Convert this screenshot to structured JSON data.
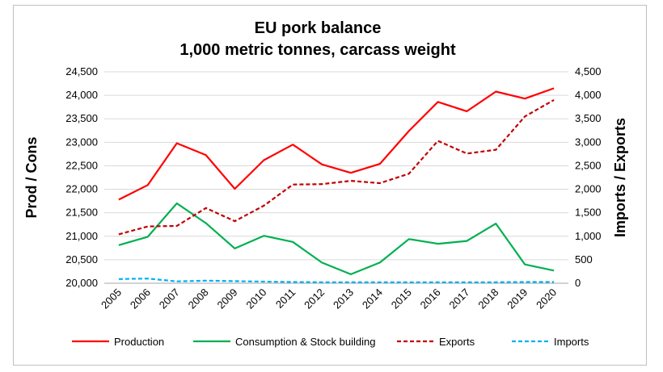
{
  "chart_data": {
    "type": "line",
    "title": "EU pork balance",
    "subtitle": "1,000 metric tonnes, carcass weight",
    "ylabel_left": "Prod / Cons",
    "ylabel_right": "Imports / Exports",
    "categories": [
      "2005",
      "2006",
      "2007",
      "2008",
      "2009",
      "2010",
      "2011",
      "2012",
      "2013",
      "2014",
      "2015",
      "2016",
      "2017",
      "2018",
      "2019",
      "2020"
    ],
    "left_axis": {
      "ylim": [
        20000,
        24500
      ],
      "ticks": [
        20000,
        20500,
        21000,
        21500,
        22000,
        22500,
        23000,
        23500,
        24000,
        24500
      ],
      "tick_labels": [
        "20,000",
        "20,500",
        "21,000",
        "21,500",
        "22,000",
        "22,500",
        "23,000",
        "23,500",
        "24,000",
        "24,500"
      ]
    },
    "right_axis": {
      "ylim": [
        0,
        4500
      ],
      "ticks": [
        0,
        500,
        1000,
        1500,
        2000,
        2500,
        3000,
        3500,
        4000,
        4500
      ],
      "tick_labels": [
        "0",
        "500",
        "1,000",
        "1,500",
        "2,000",
        "2,500",
        "3,000",
        "3,500",
        "4,000",
        "4,500"
      ]
    },
    "series": [
      {
        "name": "Production",
        "axis": "left",
        "color": "#ff0000",
        "dash": "solid",
        "values": [
          21780,
          22090,
          22980,
          22730,
          22010,
          22620,
          22950,
          22530,
          22350,
          22540,
          23240,
          23860,
          23660,
          24080,
          23930,
          24150
        ]
      },
      {
        "name": "Consumption & Stock building",
        "axis": "left",
        "color": "#00b050",
        "dash": "solid",
        "values": [
          20810,
          20990,
          21700,
          21280,
          20740,
          21010,
          20880,
          20440,
          20190,
          20440,
          20940,
          20840,
          20900,
          21270,
          20400,
          20270
        ]
      },
      {
        "name": "Exports",
        "axis": "right",
        "color": "#c00000",
        "dash": "dash",
        "values": [
          1040,
          1210,
          1220,
          1600,
          1320,
          1650,
          2100,
          2110,
          2180,
          2130,
          2330,
          3030,
          2760,
          2840,
          3550,
          3900
        ]
      },
      {
        "name": "Imports",
        "axis": "right",
        "color": "#00b0f0",
        "dash": "dash",
        "values": [
          90,
          100,
          40,
          55,
          45,
          35,
          25,
          20,
          20,
          20,
          20,
          20,
          20,
          20,
          25,
          25
        ]
      }
    ],
    "grid": "horizontal",
    "legend": "bottom"
  }
}
